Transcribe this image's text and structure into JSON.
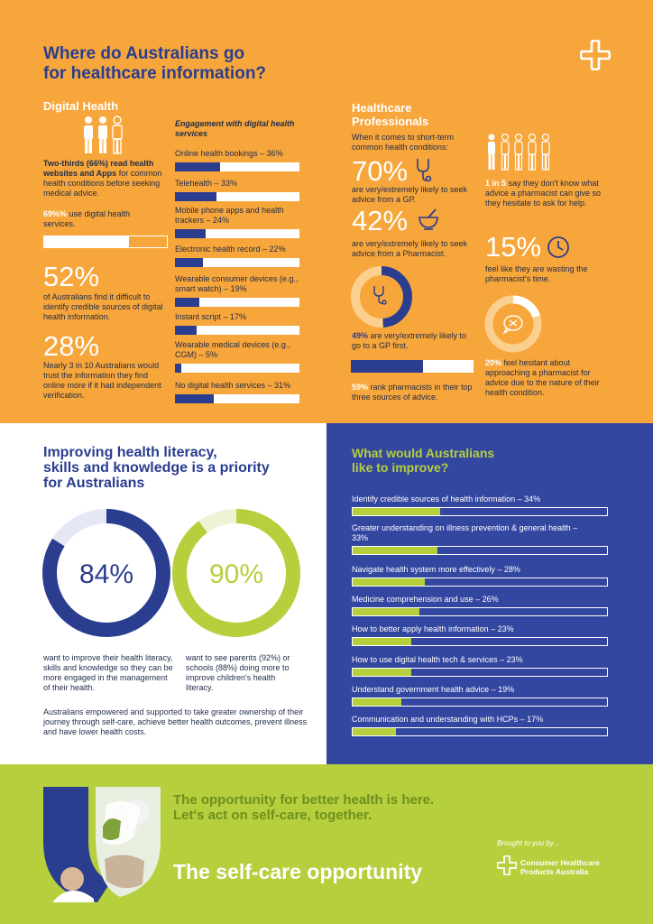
{
  "header": {
    "title_line1": "Where do Australians go",
    "title_line2": "for healthcare information?"
  },
  "digital_health": {
    "heading": "Digital Health",
    "two_thirds_bold": "Two-thirds (66%) read health websites and Apps",
    "two_thirds_rest": " for common health conditions before seeking medical advice.",
    "use_bold": "69%%",
    "use_rest": " use digital health services.",
    "use_value": 0.69,
    "stat1_number": "52%",
    "stat1_text": "of Australians find it difficult to identify credible sources of digital health information.",
    "stat2_number": "28%",
    "stat2_text": "Nearly 3 in 10 Australians would trust the information they find online more if it had independent verification."
  },
  "engagement": {
    "heading": "Engagement with digital health services",
    "items": [
      {
        "label": "Online health bookings – 36%",
        "value": 36
      },
      {
        "label": "Telehealth – 33%",
        "value": 33
      },
      {
        "label": "Mobile phone apps and health trackers – 24%",
        "value": 24
      },
      {
        "label": "Electronic health record – 22%",
        "value": 22
      },
      {
        "label": "Wearable consumer devices (e.g., smart watch) – 19%",
        "value": 19
      },
      {
        "label": "Instant script – 17%",
        "value": 17
      },
      {
        "label": "Wearable medical devices (e.g., CGM) – 5%",
        "value": 5
      },
      {
        "label": "No digital health services – 31%",
        "value": 31
      }
    ]
  },
  "professionals": {
    "heading_line1": "Healthcare",
    "heading_line2": "Professionals",
    "intro": "When it comes to short-term common health conditions:",
    "gp_number": "70%",
    "gp_text": "are very/extremely likely to seek advice from a GP.",
    "pharm_number": "42%",
    "pharm_text": "are very/extremely likely to seek advice from a Pharmacist.",
    "first_bold": "49%",
    "first_rest": " are very/extremely likely to go to a GP first.",
    "first_value": 0.49,
    "rank_bold": "59%",
    "rank_rest": " rank pharmacists in their top three sources of advice.",
    "rank_value": 0.59,
    "one_in_five_bold": "1 in 5",
    "one_in_five_rest": " say they don't know what advice a pharmacist can give so they hesitate to ask for help.",
    "waste_number": "15%",
    "waste_text": "feel like they are wasting the pharmacist's time.",
    "hesitant_bold": "20%",
    "hesitant_rest": " feel hesitant about approaching a pharmacist for advice due to the nature of their health condition.",
    "hesitant_value": 0.2
  },
  "literacy": {
    "heading_line1": "Improving health literacy,",
    "heading_line2": "skills and knowledge is a priority",
    "heading_line3": "for Australians",
    "ring1_label": "84%",
    "ring1_value": 0.84,
    "ring1_text": "want to improve their health literacy, skills and knowledge so they can be more engaged in the management of their health.",
    "ring2_label": "90%",
    "ring2_value": 0.9,
    "ring2_text": "want to see parents (92%) or schools (88%) doing more to improve children's health literacy.",
    "summary": "Australians empowered and supported to take greater ownership of their journey through self-care, achieve better health outcomes, prevent illness and have lower health costs."
  },
  "improve": {
    "heading_line1": "What would Australians",
    "heading_line2": "like to improve?",
    "items": [
      {
        "label": "Identify credible sources of health information – 34%",
        "value": 34
      },
      {
        "label": "Greater understanding on illness prevention & general health – 33%",
        "value": 33
      },
      {
        "label": "Navigate health system more effectively – 28%",
        "value": 28
      },
      {
        "label": "Medicine comprehension and use – 26%",
        "value": 26
      },
      {
        "label": "How to better apply health information – 23%",
        "value": 23
      },
      {
        "label": "How to use digital health tech & services – 23%",
        "value": 23
      },
      {
        "label": "Understand government health advice – 19%",
        "value": 19
      },
      {
        "label": "Communication and understanding with HCPs – 17%",
        "value": 17
      }
    ]
  },
  "footer": {
    "tagline_line1": "The opportunity for better health is here.",
    "tagline_line2": "Let's act on self-care, together.",
    "campaign": "The self-care opportunity",
    "brought_by": "Brought to you by...",
    "org_line1": "Consumer Healthcare",
    "org_line2": "Products Australia"
  },
  "colors": {
    "orange": "#f7a63b",
    "navy": "#2a3d8f",
    "blue": "#3347a0",
    "green": "#b5cf3d"
  }
}
